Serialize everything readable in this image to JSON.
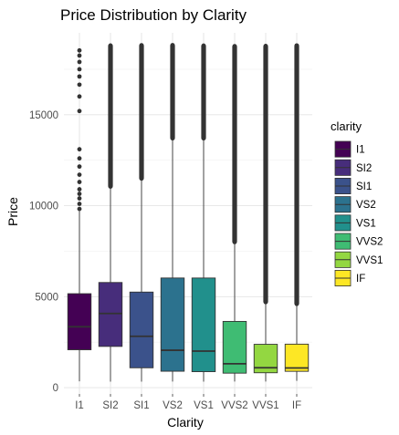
{
  "chart_data": {
    "type": "boxplot",
    "title": "Price Distribution by Clarity",
    "xlabel": "Clarity",
    "ylabel": "Price",
    "categories": [
      "I1",
      "SI2",
      "SI1",
      "VS2",
      "VS1",
      "VVS2",
      "VVS1",
      "IF"
    ],
    "yticks": [
      0,
      5000,
      10000,
      15000
    ],
    "ylim": [
      -350,
      19500
    ],
    "grid": true,
    "legend": {
      "title": "clarity",
      "position": "right",
      "entries": [
        "I1",
        "SI2",
        "SI1",
        "VS2",
        "VS1",
        "VVS2",
        "VVS1",
        "IF"
      ]
    },
    "colors": [
      "#440154",
      "#472D7B",
      "#3B528B",
      "#2C728E",
      "#21908C",
      "#3FBC73",
      "#93D741",
      "#FDE725"
    ],
    "boxes": [
      {
        "category": "I1",
        "min": 345,
        "q1": 2080,
        "median": 3344,
        "q3": 5161,
        "max": 9700,
        "outlier_min": 9800,
        "outlier_max": 18531
      },
      {
        "category": "SI2",
        "min": 326,
        "q1": 2264,
        "median": 4072,
        "q3": 5777,
        "max": 11050,
        "outlier_min": 11050,
        "outlier_max": 18804
      },
      {
        "category": "SI1",
        "min": 326,
        "q1": 1089,
        "median": 2822,
        "q3": 5250,
        "max": 11490,
        "outlier_min": 11490,
        "outlier_max": 18818
      },
      {
        "category": "VS2",
        "min": 334,
        "q1": 900,
        "median": 2054,
        "q3": 6024,
        "max": 13700,
        "outlier_min": 13700,
        "outlier_max": 18823
      },
      {
        "category": "VS1",
        "min": 327,
        "q1": 876,
        "median": 2005,
        "q3": 6023,
        "max": 13700,
        "outlier_min": 13700,
        "outlier_max": 18795
      },
      {
        "category": "VVS2",
        "min": 336,
        "q1": 794,
        "median": 1311,
        "q3": 3638,
        "max": 8000,
        "outlier_min": 8000,
        "outlier_max": 18768
      },
      {
        "category": "VVS1",
        "min": 336,
        "q1": 816,
        "median": 1093,
        "q3": 2379,
        "max": 4700,
        "outlier_min": 4700,
        "outlier_max": 18777
      },
      {
        "category": "IF",
        "min": 369,
        "q1": 895,
        "median": 1080,
        "q3": 2388,
        "max": 4600,
        "outlier_min": 4600,
        "outlier_max": 18806
      }
    ],
    "sparse_outliers": {
      "I1": [
        9820,
        10100,
        10400,
        10650,
        10900,
        11300,
        11700,
        12150,
        12600,
        13100,
        15200,
        16000,
        16650,
        17100,
        17500,
        17900,
        18250,
        18531
      ]
    }
  }
}
